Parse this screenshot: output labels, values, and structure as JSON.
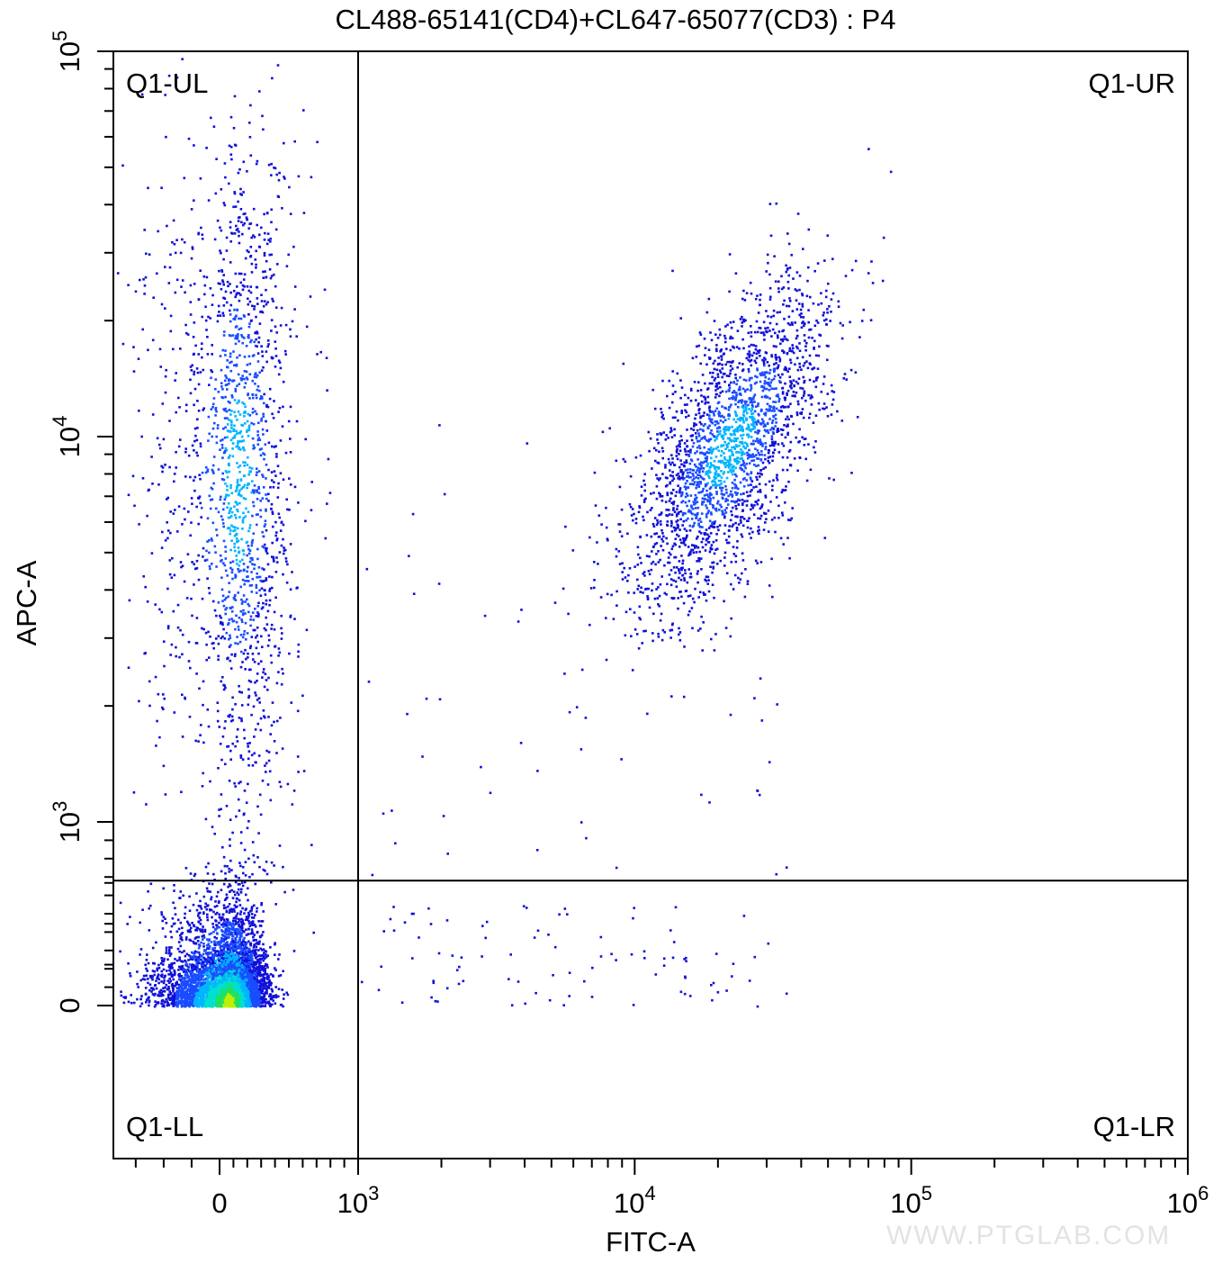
{
  "chart_data": {
    "type": "scatter",
    "title": "CL488-65141(CD4)+CL647-65077(CD3) : P4",
    "xlabel": "FITC-A",
    "ylabel": "APC-A",
    "x_scale": "biexponential",
    "y_scale": "biexponential",
    "xlim": [
      -380,
      1000000
    ],
    "ylim": [
      -370,
      100000
    ],
    "x_ticks": [
      {
        "value": 0,
        "label": "0"
      },
      {
        "value": 1000,
        "label": "10",
        "exp": "3"
      },
      {
        "value": 10000,
        "label": "10",
        "exp": "4"
      },
      {
        "value": 100000,
        "label": "10",
        "exp": "5"
      },
      {
        "value": 1000000,
        "label": "10",
        "exp": "6"
      }
    ],
    "y_ticks": [
      {
        "value": 0,
        "label": "0"
      },
      {
        "value": 1000,
        "label": "10",
        "exp": "3"
      },
      {
        "value": 10000,
        "label": "10",
        "exp": "4"
      },
      {
        "value": 100000,
        "label": "10",
        "exp": "5"
      }
    ],
    "quadrant_gate": {
      "name": "Q1",
      "x": 1000,
      "y": 680
    },
    "quadrant_labels": {
      "UL": "Q1-UL",
      "UR": "Q1-UR",
      "LL": "Q1-LL",
      "LR": "Q1-LR"
    },
    "populations": [
      {
        "name": "Q1-LL",
        "center_x": 60,
        "center_y": 20,
        "spread_x": 130,
        "spread_y": 130,
        "approx_events": 5200
      },
      {
        "name": "Q1-UL",
        "center_x": 130,
        "center_y": 7800,
        "spread_x": 200,
        "spread_y": 0.45,
        "approx_events": 1700
      },
      {
        "name": "Q1-UR",
        "center_x": 22000,
        "center_y": 9500,
        "spread_x": 0.4,
        "spread_y": 0.42,
        "approx_events": 2300
      }
    ],
    "density_colors": [
      "#1010d8",
      "#1a4cff",
      "#00b4ff",
      "#00e0d0",
      "#20e060",
      "#c0f000"
    ],
    "grid": false,
    "legend": "none"
  },
  "watermark": "WWW.PTGLAB.COM"
}
